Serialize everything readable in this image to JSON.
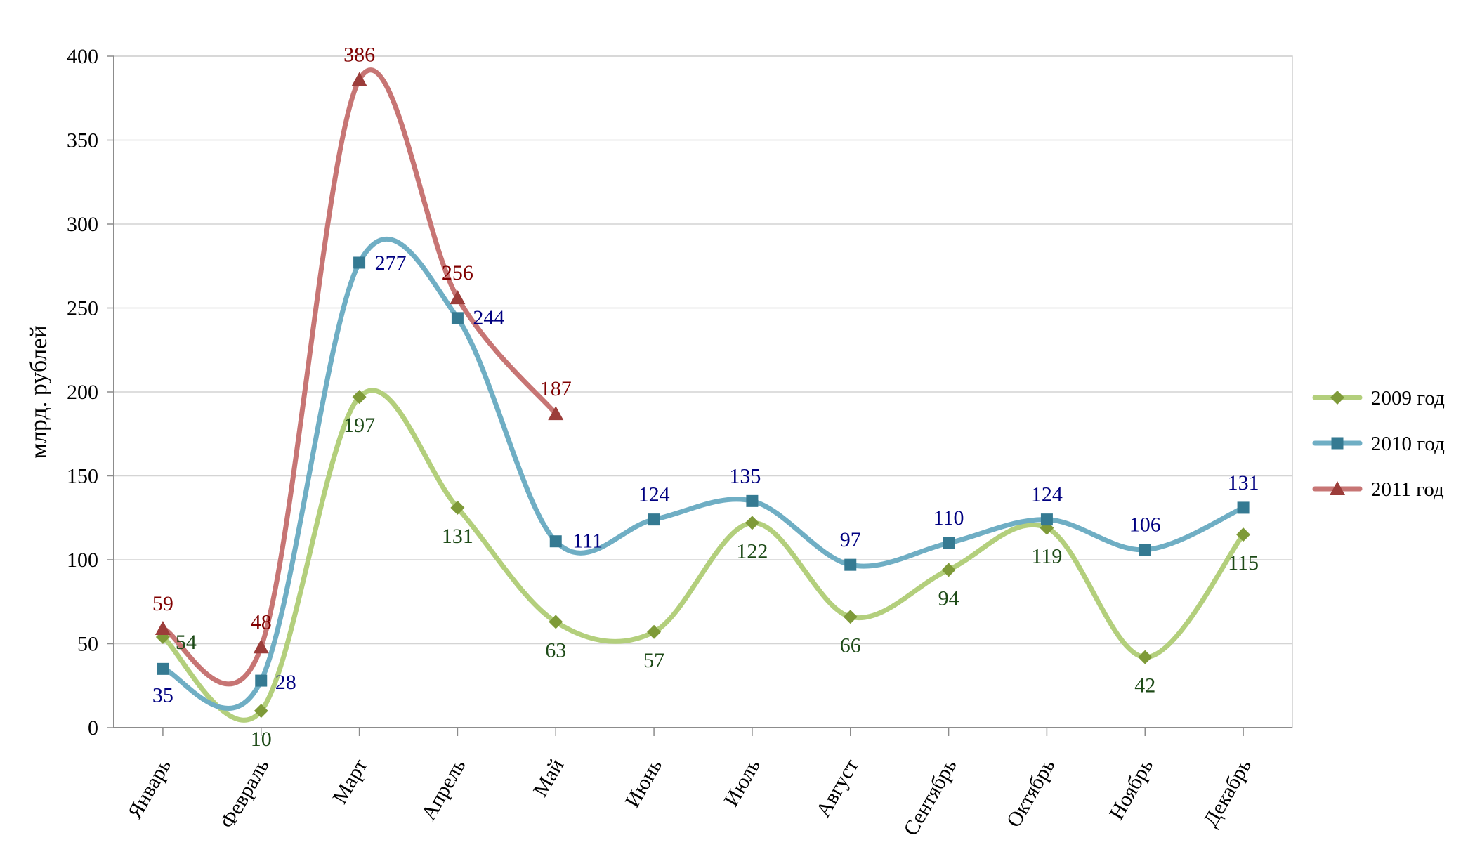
{
  "chart_data": {
    "type": "line",
    "ylabel": "млрд. рублей",
    "ylim": [
      0,
      400
    ],
    "ytick_step": 50,
    "grid": true,
    "smooth": true,
    "legend_position": "right",
    "categories": [
      "Январь",
      "Февраль",
      "Март",
      "Апрель",
      "Май",
      "Июнь",
      "Июль",
      "Август",
      "Сентябрь",
      "Октябрь",
      "Ноябрь",
      "Декабрь"
    ],
    "series": [
      {
        "name": "2009 год",
        "values": [
          54,
          10,
          197,
          131,
          63,
          57,
          122,
          66,
          94,
          119,
          42,
          115
        ],
        "line_color": "#b3cf7c",
        "marker_color": "#7e9a38",
        "label_color": "#1d4a17",
        "marker": "diamond"
      },
      {
        "name": "2010 год",
        "values": [
          35,
          28,
          277,
          244,
          111,
          124,
          135,
          97,
          110,
          124,
          106,
          131
        ],
        "line_color": "#6faec4",
        "marker_color": "#357a92",
        "label_color": "#000080",
        "marker": "square"
      },
      {
        "name": "2011 год",
        "values": [
          59,
          48,
          386,
          256,
          187,
          null,
          null,
          null,
          null,
          null,
          null,
          null
        ],
        "line_color": "#c77574",
        "marker_color": "#9c3d3a",
        "label_color": "#800000",
        "marker": "triangle"
      }
    ]
  }
}
